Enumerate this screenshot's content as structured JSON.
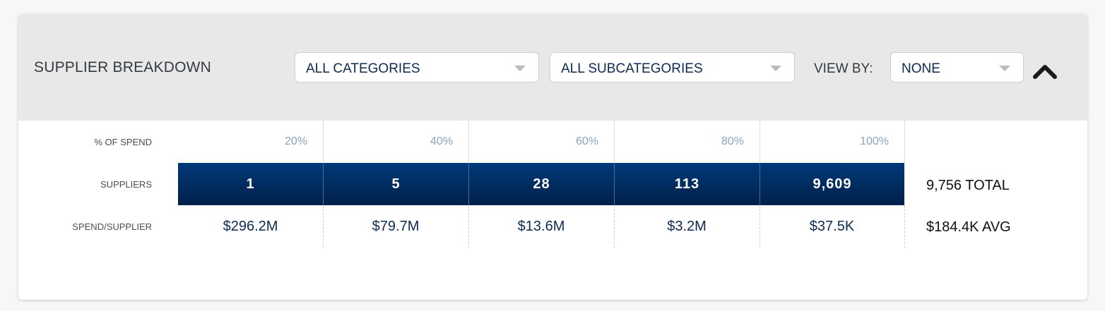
{
  "header": {
    "title": "SUPPLIER BREAKDOWN",
    "category_dropdown": {
      "value": "ALL CATEGORIES",
      "icon": "chevron-down-icon"
    },
    "subcategory_dropdown": {
      "value": "ALL SUBCATEGORIES",
      "icon": "chevron-down-icon"
    },
    "view_by_label": "VIEW BY:",
    "view_by_dropdown": {
      "value": "NONE",
      "icon": "chevron-down-icon"
    },
    "collapse_icon": "chevron-up-icon"
  },
  "rows": {
    "pct_label": "% OF SPEND",
    "suppliers_label": "SUPPLIERS",
    "spend_label": "SPEND/SUPPLIER"
  },
  "buckets": [
    {
      "pct": "20%",
      "suppliers": "1",
      "spend": "$296.2M"
    },
    {
      "pct": "40%",
      "suppliers": "5",
      "spend": "$79.7M"
    },
    {
      "pct": "60%",
      "suppliers": "28",
      "spend": "$13.6M"
    },
    {
      "pct": "80%",
      "suppliers": "113",
      "spend": "$3.2M"
    },
    {
      "pct": "100%",
      "suppliers": "9,609",
      "spend": "$37.5K"
    }
  ],
  "summary": {
    "total": "9,756 TOTAL",
    "avg": "$184.4K AVG"
  },
  "colors": {
    "bar": "#002a5c",
    "header_bg": "#e8e8e8",
    "pct_text": "#8aa4c4",
    "value_text": "#0d2a55"
  }
}
